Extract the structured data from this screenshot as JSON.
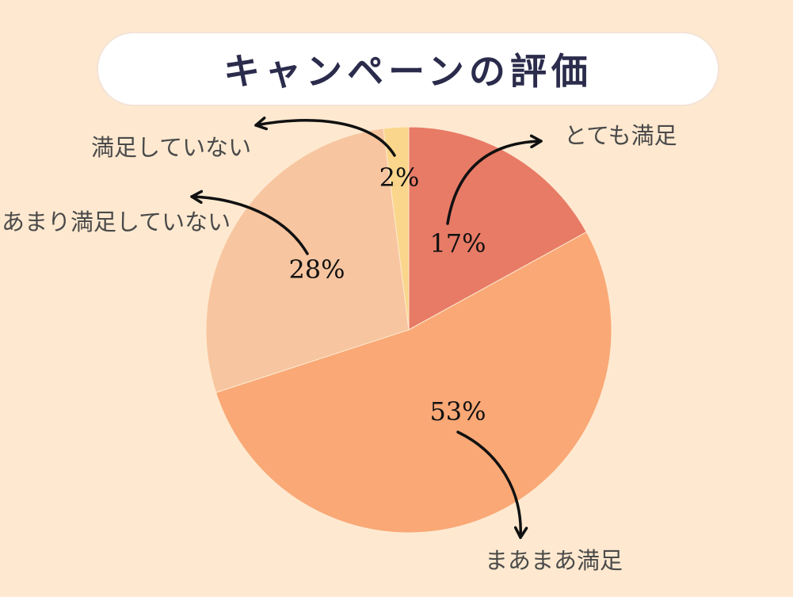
{
  "chart_data": {
    "type": "pie",
    "title": "キャンペーンの評価",
    "slices": [
      {
        "label": "とても満足",
        "value": 17,
        "percent_label": "17%",
        "color": "#E87B66"
      },
      {
        "label": "まあまあ満足",
        "value": 53,
        "percent_label": "53%",
        "color": "#F9A876"
      },
      {
        "label": "あまり満足していない",
        "value": 28,
        "percent_label": "28%",
        "color": "#F7C59F"
      },
      {
        "label": "満足していない",
        "value": 2,
        "percent_label": "2%",
        "color": "#F9D68B"
      }
    ]
  },
  "colors": {
    "background": "#FEE9D0",
    "title_text": "#2B2B4C"
  }
}
